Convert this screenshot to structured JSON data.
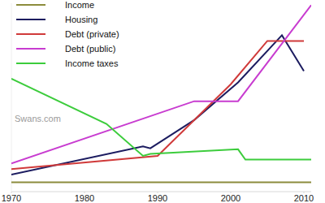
{
  "chart_data": {
    "type": "line",
    "annotation": "Swans.com",
    "series": [
      {
        "name": "Income",
        "color": "#8c8c3c",
        "x": [
          1970,
          2011
        ],
        "values": [
          5,
          5
        ]
      },
      {
        "name": "Housing",
        "color": "#1c1c60",
        "x": [
          1970,
          1988,
          1989,
          1995,
          2001,
          2007,
          2010
        ],
        "values": [
          9,
          24,
          23,
          38,
          58,
          83,
          64
        ]
      },
      {
        "name": "Debt (private)",
        "color": "#d03a3a",
        "x": [
          1970,
          1990,
          2000,
          2005,
          2010
        ],
        "values": [
          12,
          19,
          57,
          80,
          80
        ]
      },
      {
        "name": "Debt (public)",
        "color": "#c83cd0",
        "x": [
          1970,
          1995,
          2001,
          2011
        ],
        "values": [
          15,
          48,
          48,
          99
        ]
      },
      {
        "name": "Income taxes",
        "color": "#3ccc3c",
        "x": [
          1970,
          1983,
          1988,
          1989,
          2001,
          2002,
          2011
        ],
        "values": [
          60,
          36,
          19,
          20,
          22.5,
          17,
          17
        ]
      }
    ],
    "xlim": [
      1970,
      2011
    ],
    "xticks": [
      1970,
      1980,
      1990,
      2000,
      2010
    ],
    "ylim": [
      0,
      100
    ],
    "tick_labels": "x",
    "legend": "top-left"
  }
}
